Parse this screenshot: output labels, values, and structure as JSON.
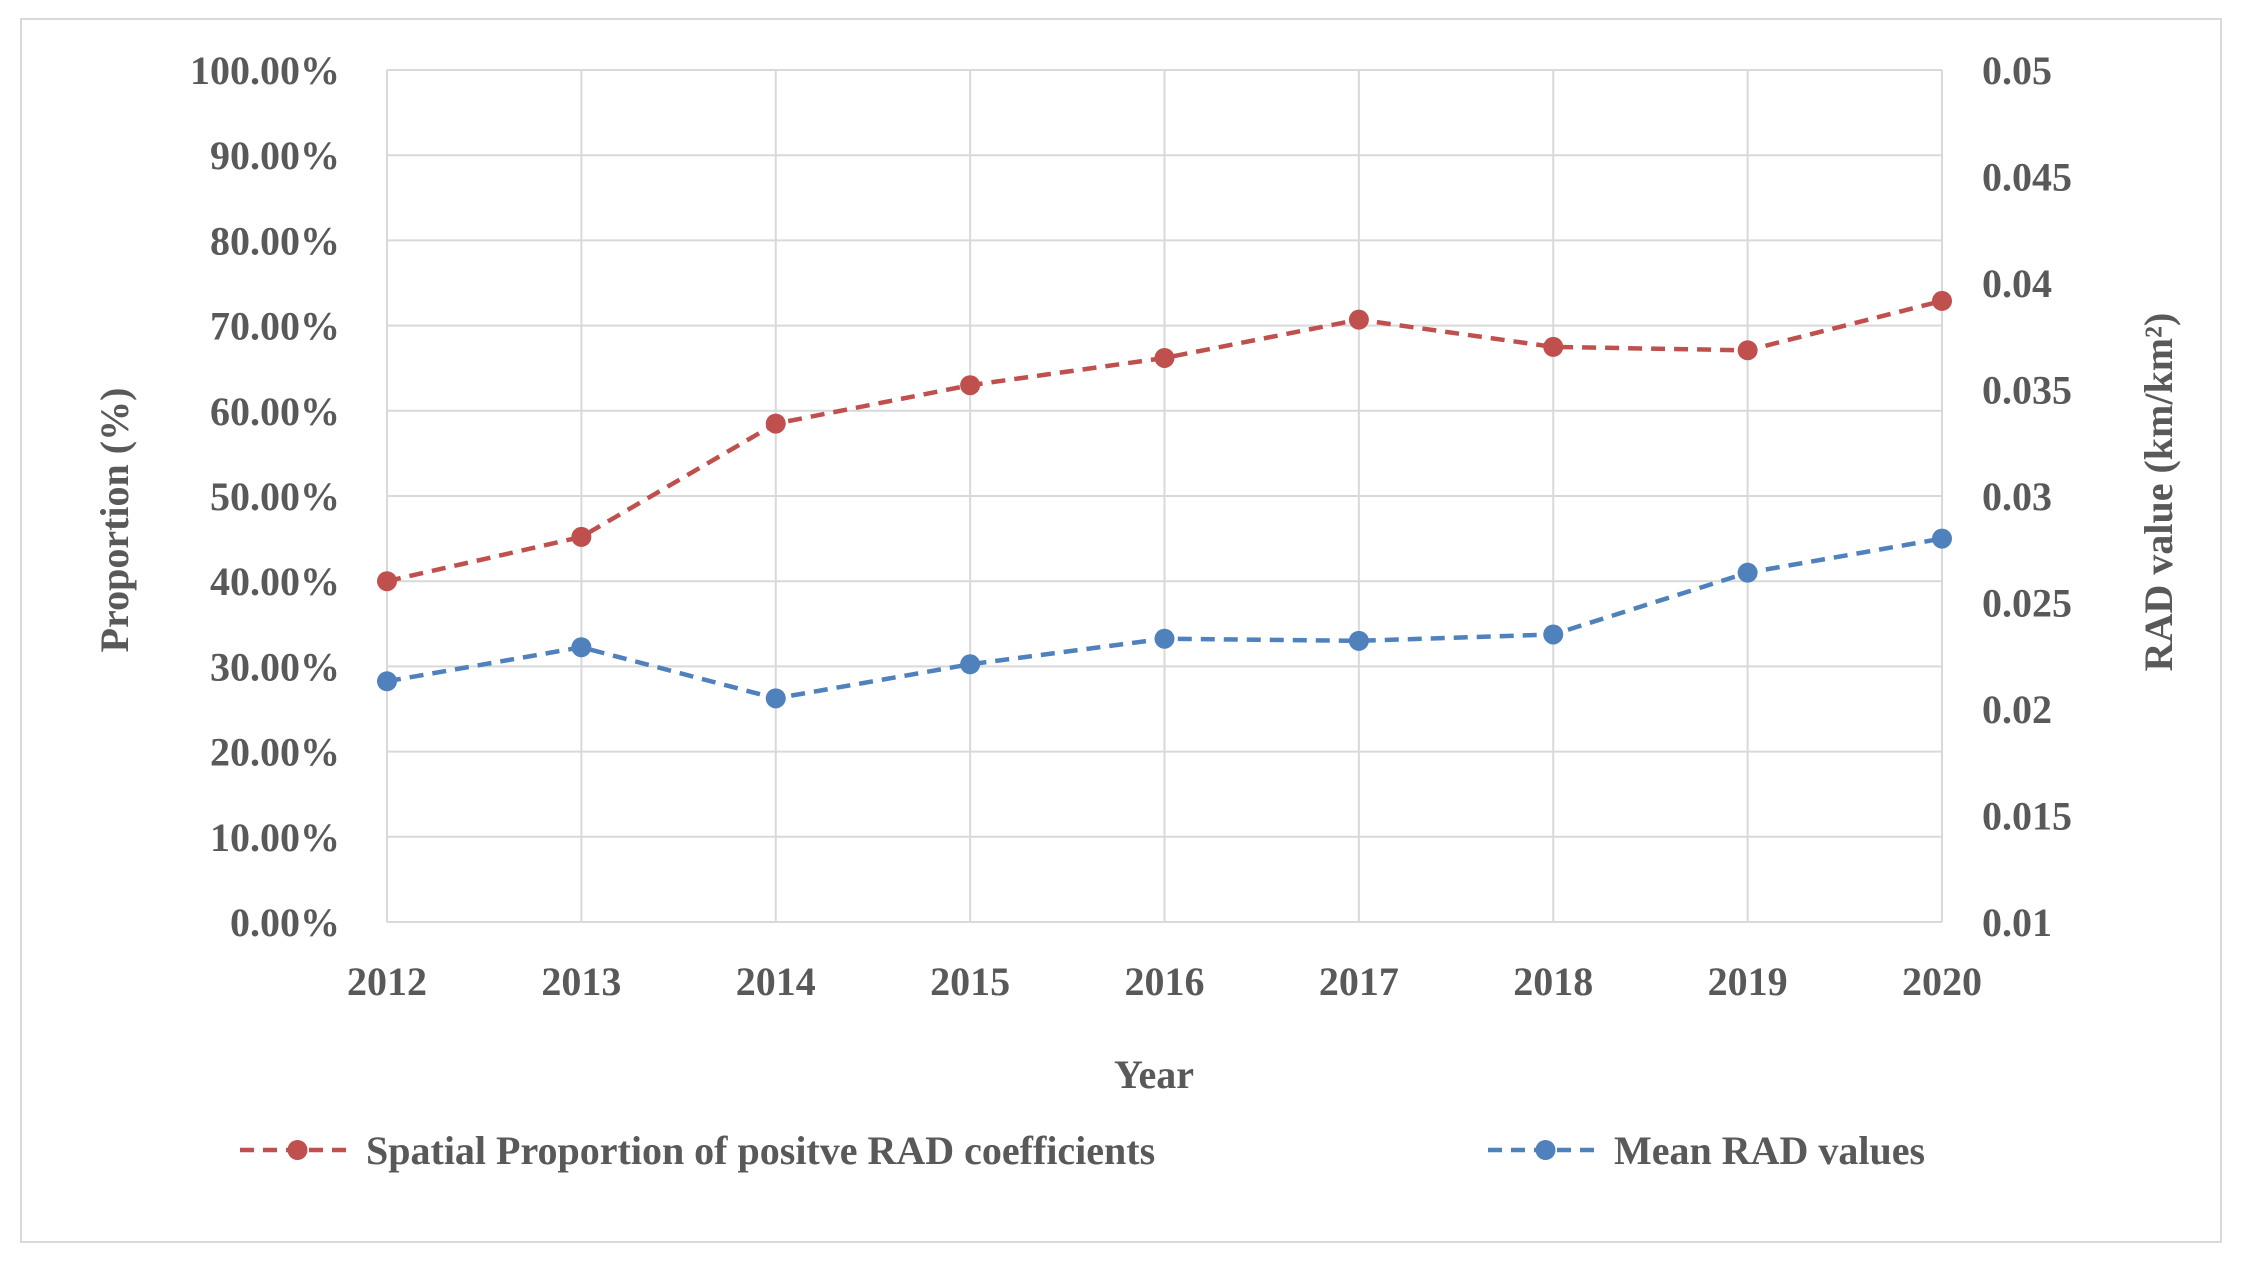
{
  "chart_data": {
    "type": "line",
    "title": "",
    "xlabel": "Year",
    "ylabel_left": "Proportion (%)",
    "ylabel_right": "RAD value (km/km²)",
    "categories": [
      "2012",
      "2013",
      "2014",
      "2015",
      "2016",
      "2017",
      "2018",
      "2019",
      "2020"
    ],
    "y_left": {
      "min": 0,
      "max": 100,
      "step": 10,
      "ticks": [
        "0.00%",
        "10.00%",
        "20.00%",
        "30.00%",
        "40.00%",
        "50.00%",
        "60.00%",
        "70.00%",
        "80.00%",
        "90.00%",
        "100.00%"
      ]
    },
    "y_right": {
      "min": 0.01,
      "max": 0.05,
      "step": 0.005,
      "ticks": [
        "0.01",
        "0.015",
        "0.02",
        "0.025",
        "0.03",
        "0.035",
        "0.04",
        "0.045",
        "0.05"
      ]
    },
    "grid": true,
    "legend_position": "bottom",
    "series": [
      {
        "name": "Spatial Proportion of positve RAD coefficients",
        "axis": "left",
        "color": "#c0504d",
        "line_style": "dashed",
        "marker": "circle",
        "values": [
          40.0,
          45.2,
          58.5,
          63.0,
          66.2,
          70.7,
          67.5,
          67.1,
          72.9
        ]
      },
      {
        "name": "Mean RAD values",
        "axis": "right",
        "color": "#4f81bd",
        "line_style": "dashed",
        "marker": "circle",
        "values": [
          0.0213,
          0.0229,
          0.0205,
          0.0221,
          0.0233,
          0.0232,
          0.0235,
          0.0264,
          0.028
        ]
      }
    ]
  }
}
